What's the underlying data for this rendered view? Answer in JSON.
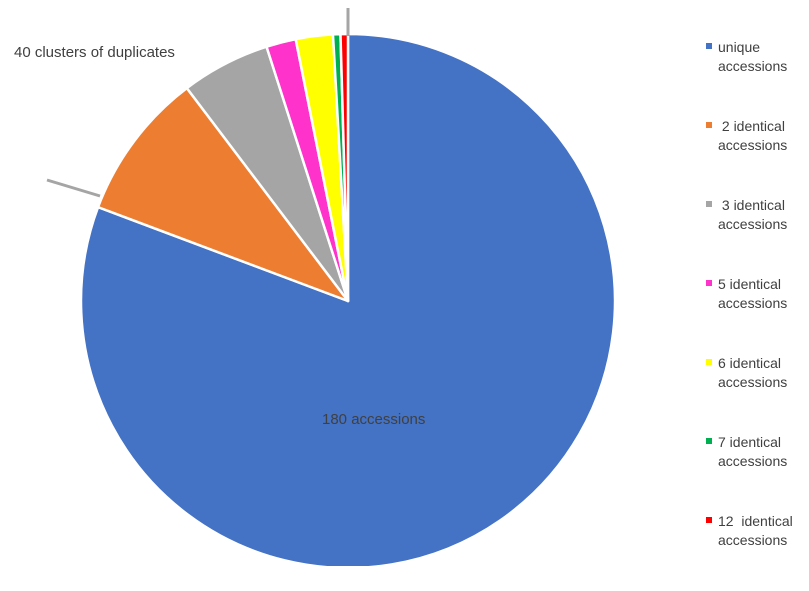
{
  "chart_data": {
    "type": "pie",
    "slices": [
      {
        "name": "unique\naccessions",
        "value": 180,
        "color": "#4472C4"
      },
      {
        "name": " 2 identical\naccessions",
        "value": 20,
        "color": "#ED7D31"
      },
      {
        "name": " 3 identical\naccessions",
        "value": 12,
        "color": "#A5A5A5"
      },
      {
        "name": "5 identical\naccessions",
        "value": 4,
        "color": "#FF33CC"
      },
      {
        "name": "6 identical\naccessions",
        "value": 5,
        "color": "#FFFF00"
      },
      {
        "name": "7 identical\naccessions",
        "value": 1,
        "color": "#00B050"
      },
      {
        "name": "12  identical\naccessions",
        "value": 1,
        "color": "#FF0000"
      }
    ],
    "annotations": {
      "main": "180 accessions",
      "clusters": "40 clusters of duplicates"
    },
    "legend_position": "right"
  }
}
